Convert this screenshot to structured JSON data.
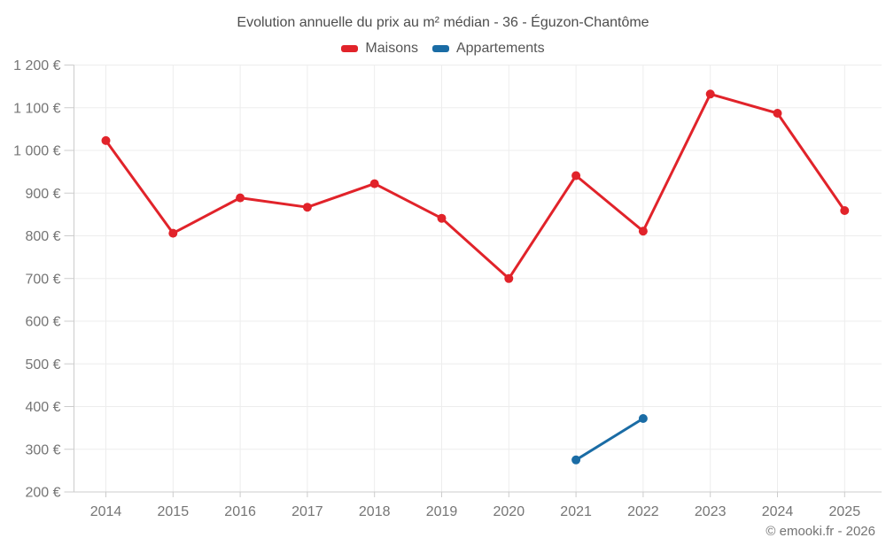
{
  "title": "Evolution annuelle du prix au m² médian - 36 - Éguzon-Chantôme",
  "footer": "© emooki.fr - 2026",
  "legend": {
    "items": [
      {
        "label": "Maisons",
        "color": "#e1232a"
      },
      {
        "label": "Appartements",
        "color": "#1a6ca5"
      }
    ]
  },
  "chart_data": {
    "type": "line",
    "title": "Evolution annuelle du prix au m² médian - 36 - Éguzon-Chantôme",
    "x": [
      "2014",
      "2015",
      "2016",
      "2017",
      "2018",
      "2019",
      "2020",
      "2021",
      "2022",
      "2023",
      "2024",
      "2025"
    ],
    "series": [
      {
        "name": "Maisons",
        "color": "#e1232a",
        "values": [
          1023,
          806,
          889,
          867,
          922,
          841,
          700,
          941,
          811,
          1132,
          1087,
          859
        ]
      },
      {
        "name": "Appartements",
        "color": "#1a6ca5",
        "values": [
          null,
          null,
          null,
          null,
          null,
          null,
          null,
          275,
          372,
          null,
          null,
          null
        ]
      }
    ],
    "xlabel": "",
    "ylabel": "",
    "ylim": [
      200,
      1200
    ],
    "ytick_step": 100,
    "yticks": [
      "200 €",
      "300 €",
      "400 €",
      "500 €",
      "600 €",
      "700 €",
      "800 €",
      "900 €",
      "1 000 €",
      "1 100 €",
      "1 200 €"
    ],
    "grid": true,
    "legend_position": "top",
    "unit": "€ / m²"
  },
  "colors": {
    "background": "#ffffff",
    "grid": "#ededed",
    "axis": "#cccccc",
    "tick_label": "#757575",
    "title_text": "#4d4d4d",
    "legend_text": "#555555",
    "footer_text": "#737373"
  }
}
